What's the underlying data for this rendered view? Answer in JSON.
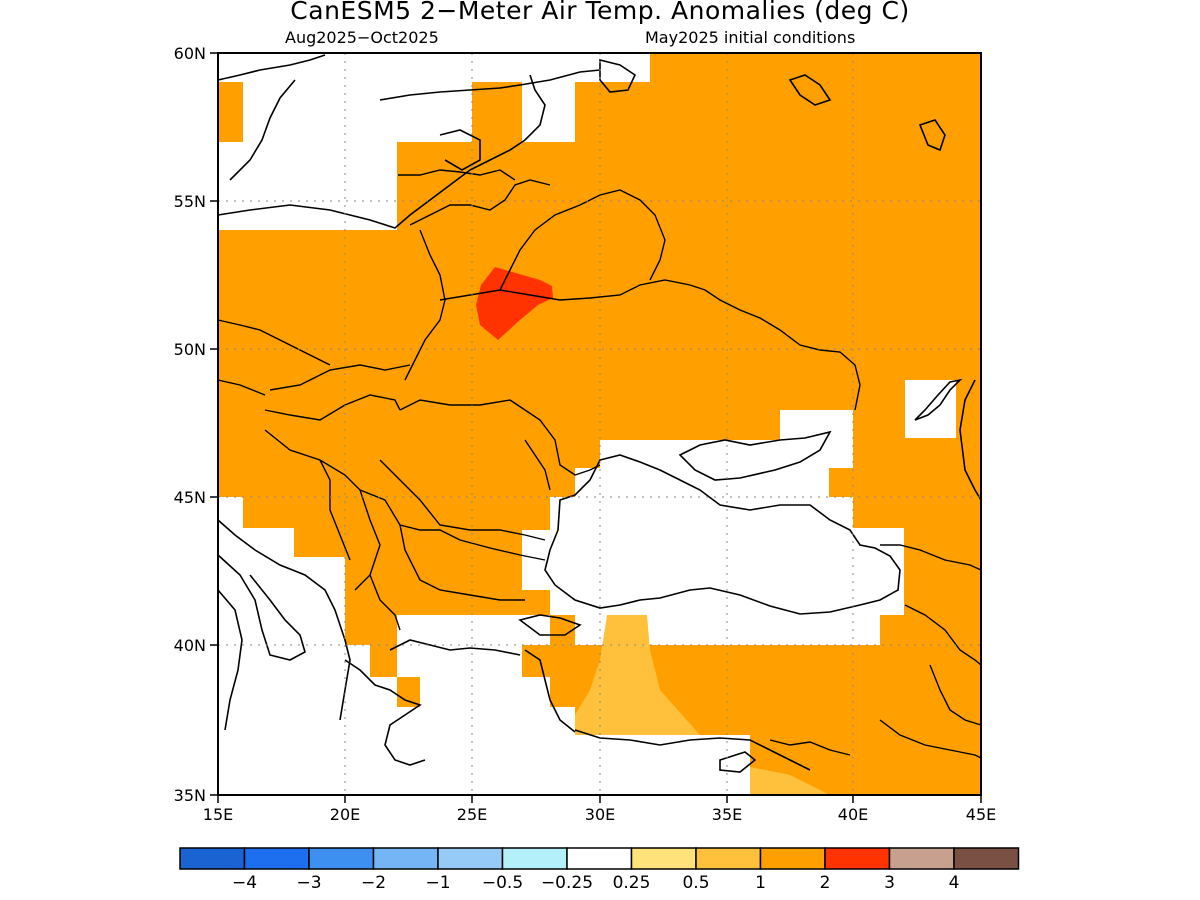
{
  "title": "CanESM5 2−Meter Air Temp. Anomalies (deg C)",
  "subtitle_left": "Aug2025−Oct2025",
  "subtitle_right": "May2025 initial conditions",
  "map": {
    "lon_range": [
      15,
      45
    ],
    "lat_range": [
      35,
      60
    ],
    "x_ticks": [
      "15E",
      "20E",
      "25E",
      "30E",
      "35E",
      "40E",
      "45E"
    ],
    "y_ticks": [
      "35N",
      "40N",
      "45N",
      "50N",
      "55N",
      "60N"
    ]
  },
  "colorbar": {
    "colors": [
      "#1a63d2",
      "#1e6ff0",
      "#3d90f0",
      "#76b5f5",
      "#97cbf7",
      "#b4f0fa",
      "#ffffff",
      "#ffe27a",
      "#ffc13c",
      "#ffa000",
      "#ff3300",
      "#c8a090",
      "#7a5045"
    ],
    "labels": [
      "−4",
      "−3",
      "−2",
      "−1",
      "−0.5",
      "−0.25",
      "0.25",
      "0.5",
      "1",
      "2",
      "3",
      "4"
    ]
  },
  "colors": {
    "anomaly_1_2": "#ffa000",
    "anomaly_2_3": "#ff3300",
    "anomaly_05_1": "#ffc13c",
    "no_anomaly": "#ffffff"
  }
}
